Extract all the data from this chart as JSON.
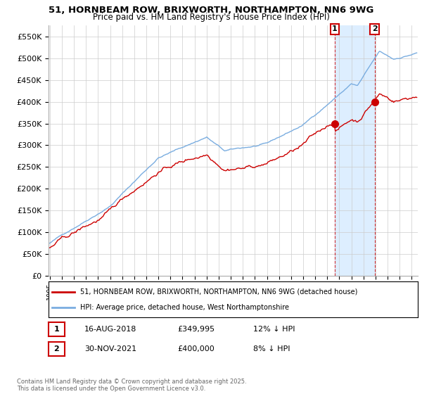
{
  "title_line1": "51, HORNBEAM ROW, BRIXWORTH, NORTHAMPTON, NN6 9WG",
  "title_line2": "Price paid vs. HM Land Registry's House Price Index (HPI)",
  "legend_red": "51, HORNBEAM ROW, BRIXWORTH, NORTHAMPTON, NN6 9WG (detached house)",
  "legend_blue": "HPI: Average price, detached house, West Northamptonshire",
  "sale1_label": "1",
  "sale1_date": "16-AUG-2018",
  "sale1_price": "£349,995",
  "sale1_hpi": "12% ↓ HPI",
  "sale2_label": "2",
  "sale2_date": "30-NOV-2021",
  "sale2_price": "£400,000",
  "sale2_hpi": "8% ↓ HPI",
  "footnote": "Contains HM Land Registry data © Crown copyright and database right 2025.\nThis data is licensed under the Open Government Licence v3.0.",
  "red_color": "#cc0000",
  "blue_color": "#7aade0",
  "shade_color": "#ddeeff",
  "sale1_date_num": 2018.625,
  "sale1_price_val": 349995,
  "sale2_date_num": 2021.917,
  "sale2_price_val": 400000,
  "ylim": [
    0,
    575000
  ],
  "xlim_start": 1994.9,
  "xlim_end": 2025.5
}
